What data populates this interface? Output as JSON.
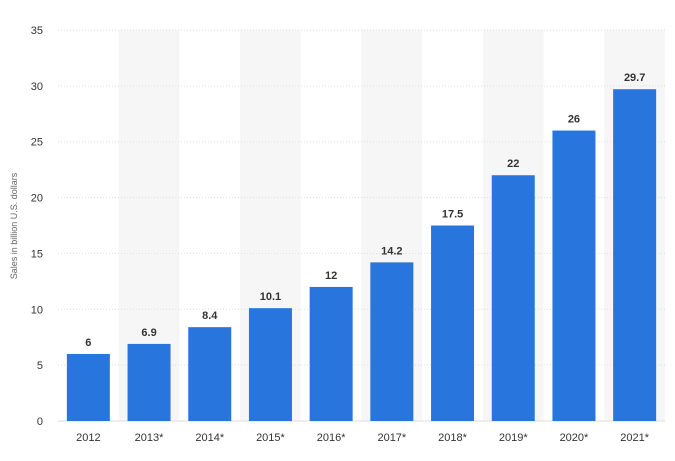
{
  "chart_data": {
    "type": "bar",
    "title": "",
    "xlabel": "",
    "ylabel": "Sales in billion U.S. dollars",
    "categories": [
      "2012",
      "2013*",
      "2014*",
      "2015*",
      "2016*",
      "2017*",
      "2018*",
      "2019*",
      "2020*",
      "2021*"
    ],
    "series": [
      {
        "values": [
          6,
          6.9,
          8.4,
          10.1,
          12,
          14.2,
          17.5,
          22,
          26,
          29.7
        ]
      }
    ],
    "value_labels": [
      "6",
      "6.9",
      "8.4",
      "10.1",
      "12",
      "14.2",
      "17.5",
      "22",
      "26",
      "29.7"
    ],
    "ylim": [
      0,
      35
    ],
    "yticks": [
      0,
      5,
      10,
      15,
      20,
      25,
      30,
      35
    ],
    "grid": true,
    "legend": "none",
    "colors": {
      "bar": "#2876dd",
      "band": "#f6f6f6",
      "grid": "#dddddd"
    }
  }
}
